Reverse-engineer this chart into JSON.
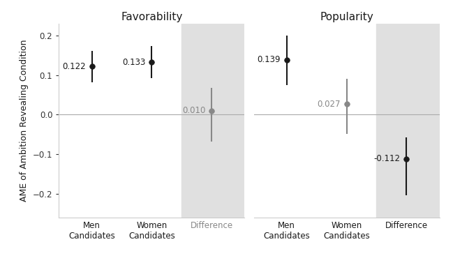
{
  "panels": [
    {
      "title": "Favorability",
      "groups": [
        "Men\nCandidates",
        "Women\nCandidates",
        "Difference"
      ],
      "estimates": [
        0.122,
        0.133,
        0.01
      ],
      "ci_low": [
        0.082,
        0.093,
        -0.068
      ],
      "ci_high": [
        0.162,
        0.173,
        0.068
      ],
      "point_colors": [
        "#1a1a1a",
        "#1a1a1a",
        "#888888"
      ],
      "label_colors": [
        "#1a1a1a",
        "#1a1a1a",
        "#888888"
      ],
      "xtick_colors": [
        "#1a1a1a",
        "#1a1a1a",
        "#888888"
      ]
    },
    {
      "title": "Popularity",
      "groups": [
        "Men\nCandidates",
        "Women\nCandidates",
        "Difference"
      ],
      "estimates": [
        0.139,
        0.027,
        -0.112
      ],
      "ci_low": [
        0.075,
        -0.048,
        -0.205
      ],
      "ci_high": [
        0.2,
        0.09,
        -0.057
      ],
      "point_colors": [
        "#1a1a1a",
        "#888888",
        "#1a1a1a"
      ],
      "label_colors": [
        "#1a1a1a",
        "#888888",
        "#1a1a1a"
      ],
      "xtick_colors": [
        "#1a1a1a",
        "#1a1a1a",
        "#1a1a1a"
      ]
    }
  ],
  "ylabel": "AME of Ambition Revealing Condition",
  "ylim": [
    -0.26,
    0.23
  ],
  "yticks": [
    -0.2,
    -0.1,
    0.0,
    0.1,
    0.2
  ],
  "shade_color": "#e0e0e0",
  "bg_color": "#ffffff",
  "hline_color": "#aaaaaa",
  "title_fontsize": 11,
  "label_fontsize": 8.5,
  "tick_fontsize": 8.5,
  "ylabel_fontsize": 9,
  "x_positions": [
    0,
    1,
    2
  ],
  "xlim": [
    -0.55,
    2.55
  ]
}
